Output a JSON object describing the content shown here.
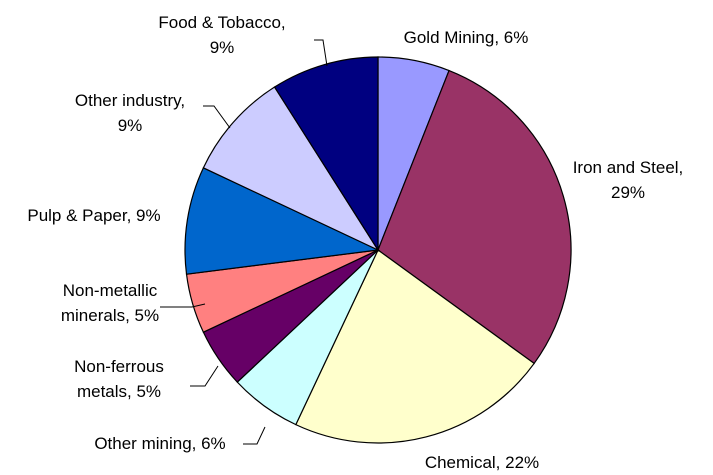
{
  "chart_data": {
    "type": "pie",
    "title": "",
    "start_angle_deg": 0,
    "direction": "clockwise",
    "slices": [
      {
        "label": "Gold Mining",
        "value": 6,
        "color": "#9999FF",
        "label_lines": [
          "Gold Mining, 6%"
        ]
      },
      {
        "label": "Iron and Steel",
        "value": 29,
        "color": "#993366",
        "label_lines": [
          "Iron and Steel,",
          "29%"
        ]
      },
      {
        "label": "Chemical",
        "value": 22,
        "color": "#FFFFCC",
        "label_lines": [
          "Chemical, 22%"
        ]
      },
      {
        "label": "Other mining",
        "value": 6,
        "color": "#CCFFFF",
        "label_lines": [
          "Other mining, 6%"
        ]
      },
      {
        "label": "Non-ferrous metals",
        "value": 5,
        "color": "#660066",
        "label_lines": [
          "Non-ferrous",
          "metals, 5%"
        ]
      },
      {
        "label": "Non-metallic minerals",
        "value": 5,
        "color": "#FF8080",
        "label_lines": [
          "Non-metallic",
          "minerals, 5%"
        ]
      },
      {
        "label": "Pulp & Paper",
        "value": 9,
        "color": "#0066CC",
        "label_lines": [
          "Pulp & Paper, 9%"
        ]
      },
      {
        "label": "Other industry",
        "value": 9,
        "color": "#CCCCFF",
        "label_lines": [
          "Other industry,",
          "9%"
        ]
      },
      {
        "label": "Food & Tobacco",
        "value": 9,
        "color": "#000080",
        "label_lines": [
          "Food & Tobacco,",
          "9%"
        ]
      }
    ]
  }
}
